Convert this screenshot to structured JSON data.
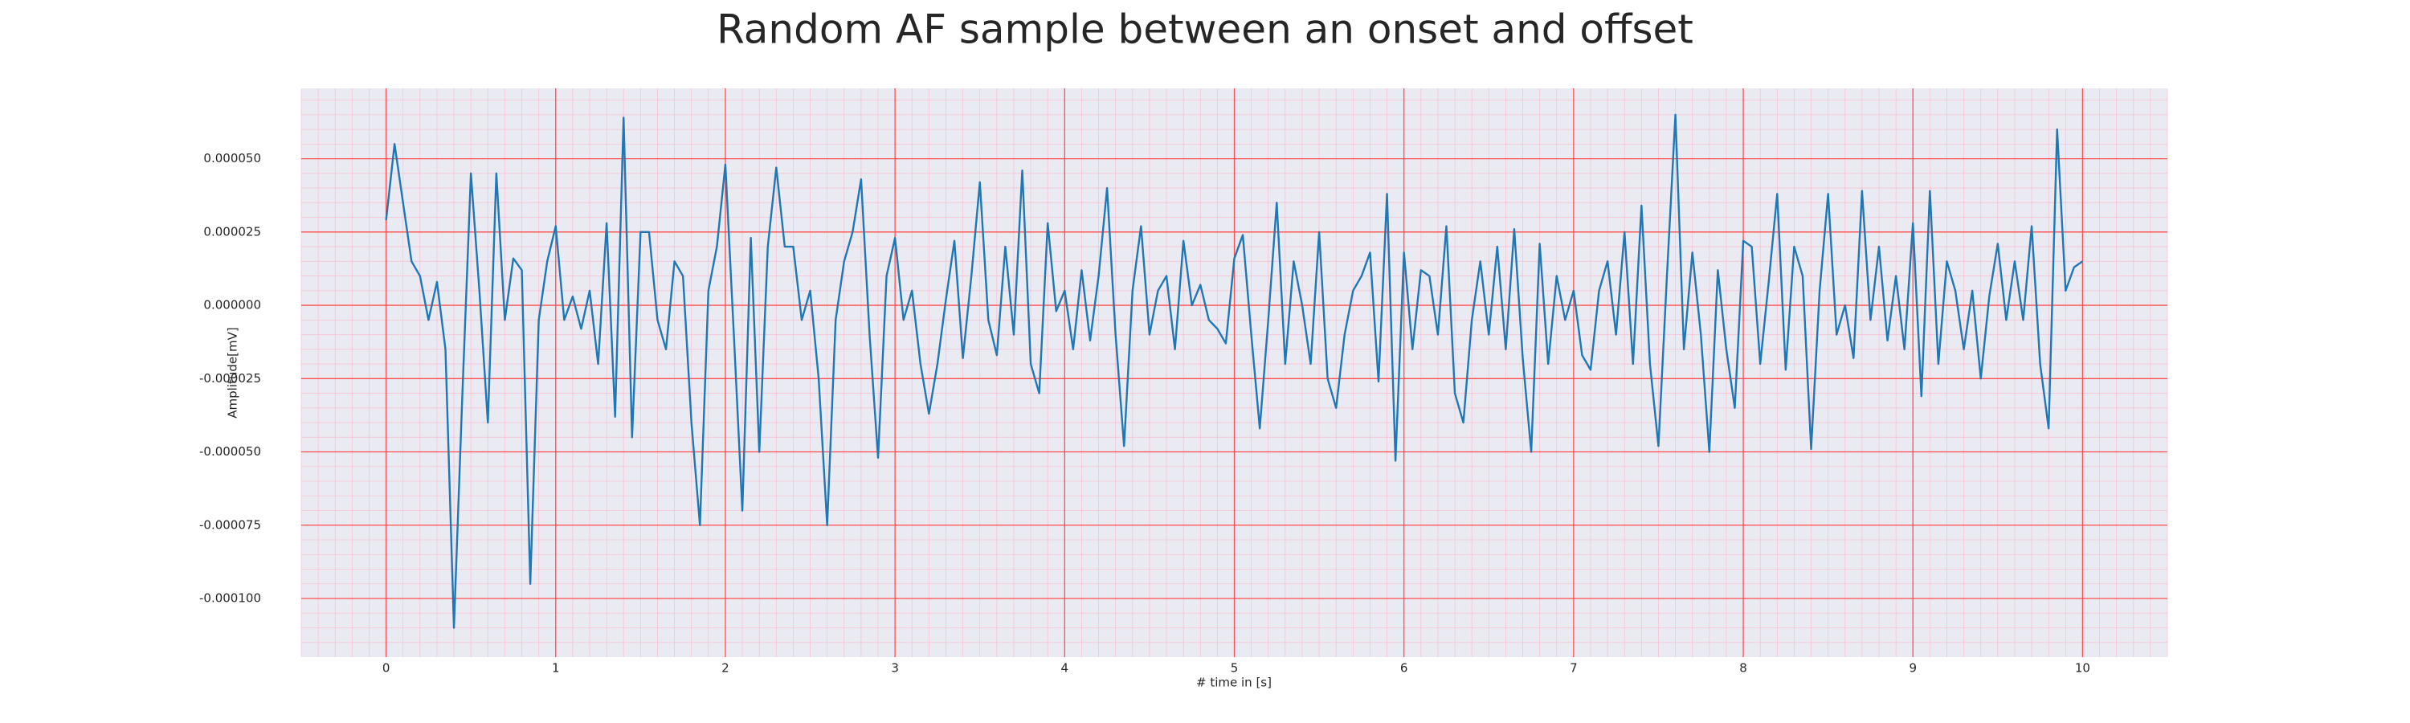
{
  "chart_data": {
    "type": "line",
    "title": "Random AF sample between an onset and offset",
    "xlabel": "# time in [s]",
    "ylabel": "Amplitude[mV]",
    "color": "#1f77b4",
    "grid": true,
    "xlim": [
      -0.5,
      10.5
    ],
    "ylim": [
      -0.00012,
      7.4e-05
    ],
    "xticks": [
      0,
      1,
      2,
      3,
      4,
      5,
      6,
      7,
      8,
      9,
      10
    ],
    "yticks": [
      {
        "value": -0.0001,
        "label": "-0.000100"
      },
      {
        "value": -7.5e-05,
        "label": "-0.000075"
      },
      {
        "value": -5e-05,
        "label": "-0.000050"
      },
      {
        "value": -2.5e-05,
        "label": "-0.000025"
      },
      {
        "value": 0,
        "label": "0.000000"
      },
      {
        "value": 2.5e-05,
        "label": "0.000025"
      },
      {
        "value": 5e-05,
        "label": "0.000050"
      }
    ],
    "x": [
      0,
      0.05,
      0.1,
      0.15,
      0.2,
      0.25,
      0.3,
      0.35,
      0.4,
      0.45,
      0.5,
      0.55,
      0.6,
      0.65,
      0.7,
      0.75,
      0.8,
      0.85,
      0.9,
      0.95,
      1,
      1.05,
      1.1,
      1.15,
      1.2,
      1.25,
      1.3,
      1.35,
      1.4,
      1.45,
      1.5,
      1.55,
      1.6,
      1.65,
      1.7,
      1.75,
      1.8,
      1.85,
      1.9,
      1.95,
      2,
      2.05,
      2.1,
      2.15,
      2.2,
      2.25,
      2.3,
      2.35,
      2.4,
      2.45,
      2.5,
      2.55,
      2.6,
      2.65,
      2.7,
      2.75,
      2.8,
      2.85,
      2.9,
      2.95,
      3,
      3.05,
      3.1,
      3.15,
      3.2,
      3.25,
      3.3,
      3.35,
      3.4,
      3.45,
      3.5,
      3.55,
      3.6,
      3.65,
      3.7,
      3.75,
      3.8,
      3.85,
      3.9,
      3.95,
      4,
      4.05,
      4.1,
      4.15,
      4.2,
      4.25,
      4.3,
      4.35,
      4.4,
      4.45,
      4.5,
      4.55,
      4.6,
      4.65,
      4.7,
      4.75,
      4.8,
      4.85,
      4.9,
      4.95,
      5,
      5.05,
      5.1,
      5.15,
      5.2,
      5.25,
      5.3,
      5.35,
      5.4,
      5.45,
      5.5,
      5.55,
      5.6,
      5.65,
      5.7,
      5.75,
      5.8,
      5.85,
      5.9,
      5.95,
      6,
      6.05,
      6.1,
      6.15,
      6.2,
      6.25,
      6.3,
      6.35,
      6.4,
      6.45,
      6.5,
      6.55,
      6.6,
      6.65,
      6.7,
      6.75,
      6.8,
      6.85,
      6.9,
      6.95,
      7,
      7.05,
      7.1,
      7.15,
      7.2,
      7.25,
      7.3,
      7.35,
      7.4,
      7.45,
      7.5,
      7.55,
      7.6,
      7.65,
      7.7,
      7.75,
      7.8,
      7.85,
      7.9,
      7.95,
      8,
      8.05,
      8.1,
      8.15,
      8.2,
      8.25,
      8.3,
      8.35,
      8.4,
      8.45,
      8.5,
      8.55,
      8.6,
      8.65,
      8.7,
      8.75,
      8.8,
      8.85,
      8.9,
      8.95,
      9,
      9.05,
      9.1,
      9.15,
      9.2,
      9.25,
      9.3,
      9.35,
      9.4,
      9.45,
      9.5,
      9.55,
      9.6,
      9.65,
      9.7,
      9.75,
      9.8,
      9.85,
      9.9,
      9.95,
      10
    ],
    "values": [
      2.9e-05,
      5.5e-05,
      3.5e-05,
      1.5e-05,
      1e-05,
      -5e-06,
      8e-06,
      -1.5e-05,
      -0.00011,
      -3e-05,
      4.5e-05,
      5e-06,
      -4e-05,
      4.5e-05,
      -5e-06,
      1.6e-05,
      1.2e-05,
      -9.5e-05,
      -5e-06,
      1.5e-05,
      2.7e-05,
      -5e-06,
      3e-06,
      -8e-06,
      5e-06,
      -2e-05,
      2.8e-05,
      -3.8e-05,
      6.4e-05,
      -4.5e-05,
      2.5e-05,
      2.5e-05,
      -5e-06,
      -1.5e-05,
      1.5e-05,
      1e-05,
      -4e-05,
      -7.5e-05,
      5e-06,
      2e-05,
      4.8e-05,
      -1e-05,
      -7e-05,
      2.3e-05,
      -5e-05,
      2e-05,
      4.7e-05,
      2e-05,
      2e-05,
      -5e-06,
      5e-06,
      -2.5e-05,
      -7.5e-05,
      -5e-06,
      1.5e-05,
      2.5e-05,
      4.3e-05,
      -1e-05,
      -5.2e-05,
      1e-05,
      2.3e-05,
      -5e-06,
      5e-06,
      -2e-05,
      -3.7e-05,
      -2e-05,
      2e-06,
      2.2e-05,
      -1.8e-05,
      1e-05,
      4.2e-05,
      -5e-06,
      -1.7e-05,
      2e-05,
      -1e-05,
      4.6e-05,
      -2e-05,
      -3e-05,
      2.8e-05,
      -2e-06,
      5e-06,
      -1.5e-05,
      1.2e-05,
      -1.2e-05,
      1e-05,
      4e-05,
      -1e-05,
      -4.8e-05,
      5e-06,
      2.7e-05,
      -1e-05,
      5e-06,
      1e-05,
      -1.5e-05,
      2.2e-05,
      0,
      7e-06,
      -5e-06,
      -8e-06,
      -1.3e-05,
      1.6e-05,
      2.4e-05,
      -1e-05,
      -4.2e-05,
      -5e-06,
      3.5e-05,
      -2e-05,
      1.5e-05,
      0,
      -2e-05,
      2.5e-05,
      -2.5e-05,
      -3.5e-05,
      -1e-05,
      5e-06,
      1e-05,
      1.8e-05,
      -2.6e-05,
      3.8e-05,
      -5.3e-05,
      1.8e-05,
      -1.5e-05,
      1.2e-05,
      1e-05,
      -1e-05,
      2.7e-05,
      -3e-05,
      -4e-05,
      -5e-06,
      1.5e-05,
      -1e-05,
      2e-05,
      -1.5e-05,
      2.6e-05,
      -1.8e-05,
      -5e-05,
      2.1e-05,
      -2e-05,
      1e-05,
      -5e-06,
      5e-06,
      -1.7e-05,
      -2.2e-05,
      5e-06,
      1.5e-05,
      -1e-05,
      2.5e-05,
      -2e-05,
      3.4e-05,
      -2e-05,
      -4.8e-05,
      1e-05,
      6.5e-05,
      -1.5e-05,
      1.8e-05,
      -1e-05,
      -5e-05,
      1.2e-05,
      -1.5e-05,
      -3.5e-05,
      2.2e-05,
      2e-05,
      -2e-05,
      8e-06,
      3.8e-05,
      -2.2e-05,
      2e-05,
      1e-05,
      -4.9e-05,
      5e-06,
      3.8e-05,
      -1e-05,
      0,
      -1.8e-05,
      3.9e-05,
      -5e-06,
      2e-05,
      -1.2e-05,
      1e-05,
      -1.5e-05,
      2.8e-05,
      -3.1e-05,
      3.9e-05,
      -2e-05,
      1.5e-05,
      5e-06,
      -1.5e-05,
      5e-06,
      -2.5e-05,
      3e-06,
      2.1e-05,
      -5e-06,
      1.5e-05,
      -5e-06,
      2.7e-05,
      -2e-05,
      -4.2e-05,
      6e-05,
      5e-06,
      1.3e-05,
      1.5e-05
    ]
  }
}
